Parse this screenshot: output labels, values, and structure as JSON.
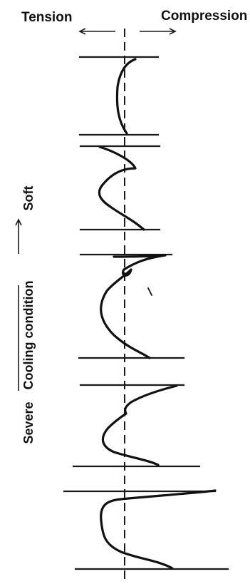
{
  "header": {
    "tension_label": "Tension",
    "compression_label": "Compression"
  },
  "side": {
    "soft_label": "Soft",
    "condition_label": "Cooling condition",
    "severe_label": "Severe"
  }
}
